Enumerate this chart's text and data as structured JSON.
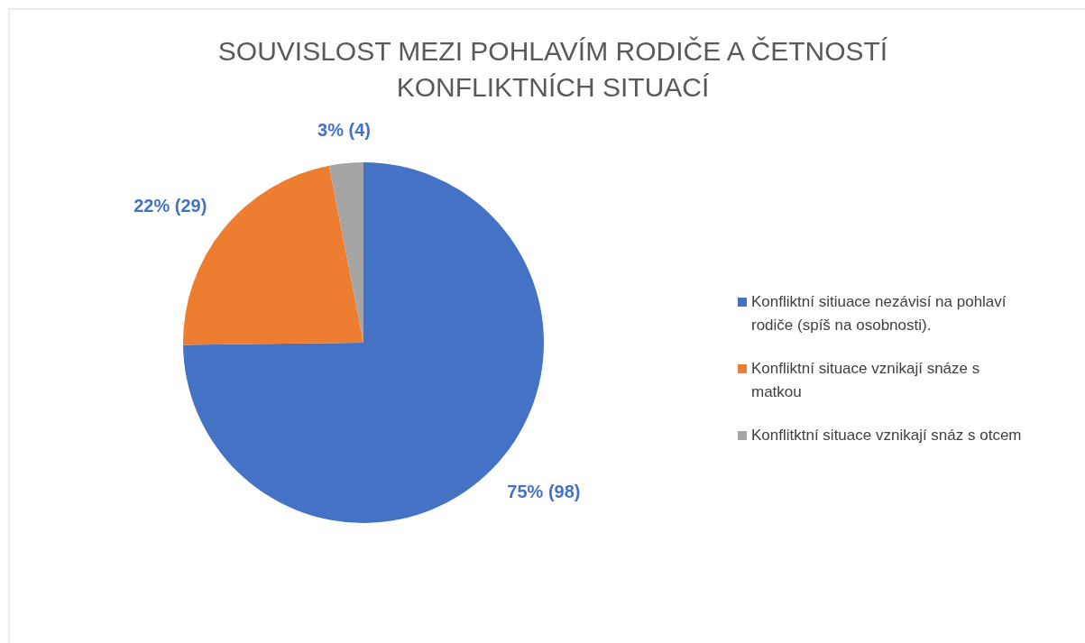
{
  "chart_data": {
    "type": "pie",
    "title": "SOUVISLOST MEZI POHLAVÍM RODIČE A ČETNOSTÍ KONFLIKTNÍCH SITUACÍ",
    "categories": [
      "Konfliktní sitiuace nezávisí na pohlaví rodiče (spíš na osobnosti).",
      "Konfliktní situace vznikají snáze s matkou",
      "Konflitktní situace vznikají snáz s otcem"
    ],
    "values": [
      98,
      29,
      4
    ],
    "colors": [
      "#4472c4",
      "#ed7d31",
      "#a5a5a5"
    ],
    "value_labels": [
      "75% (98)",
      "22% (29)",
      "3% (4)"
    ],
    "legend": "right"
  }
}
